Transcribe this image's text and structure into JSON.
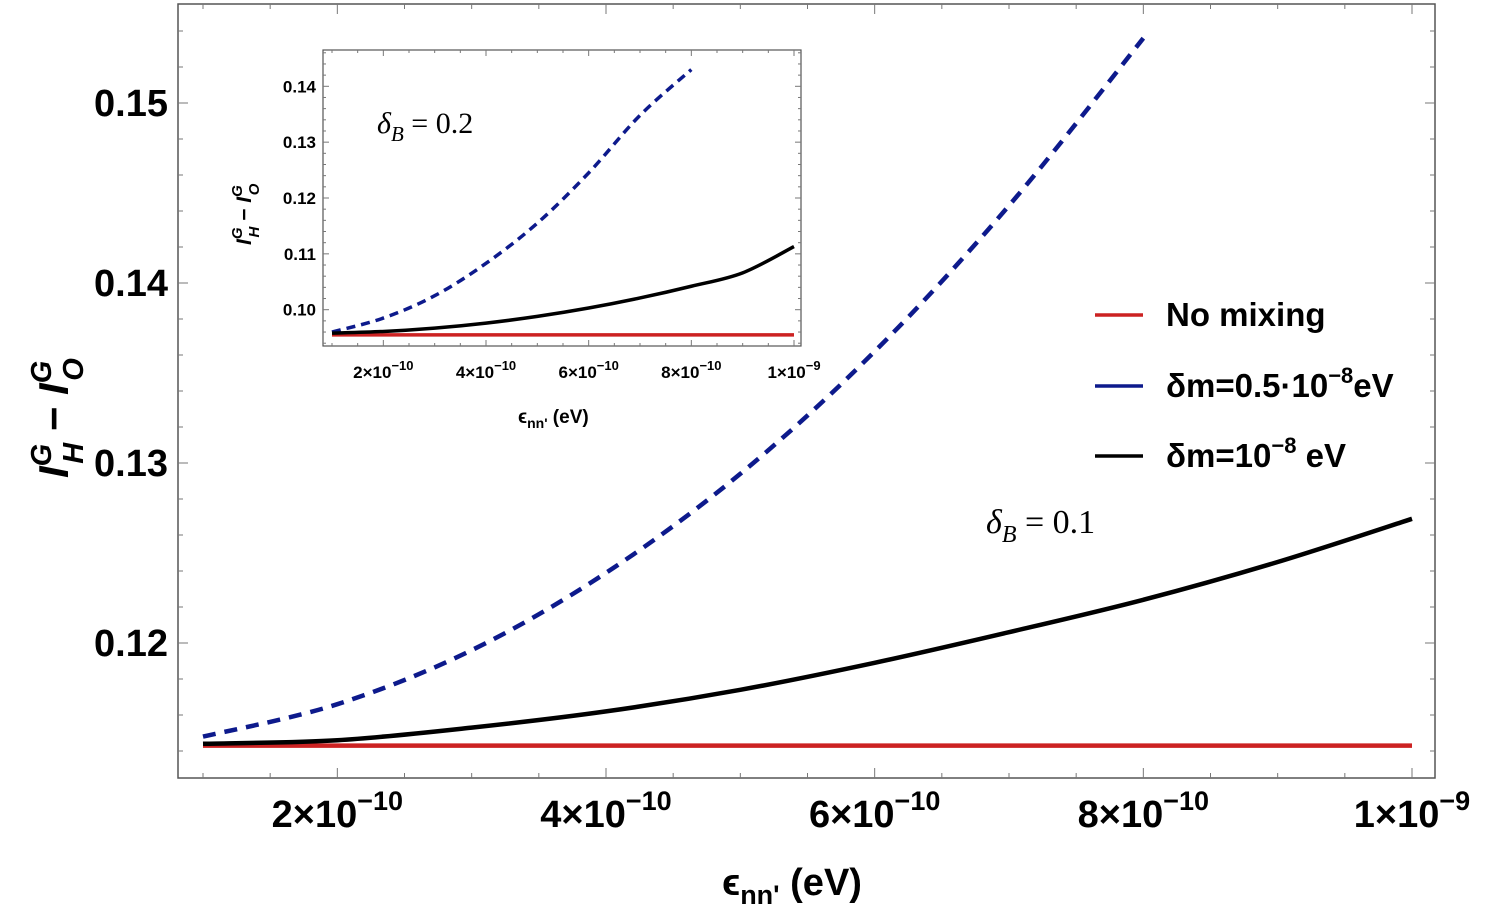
{
  "chart_data": [
    {
      "id": "main",
      "type": "line",
      "xlabel": "ε_nn' (eV)",
      "ylabel": "I_H^G − I_O^G",
      "xlim": [
        1e-10,
        1.05e-09
      ],
      "ylim": [
        0.1125,
        0.1555
      ],
      "x_ticks": [
        {
          "value": 2e-10,
          "mantissa": "2",
          "exp": "−10"
        },
        {
          "value": 4e-10,
          "mantissa": "4",
          "exp": "−10"
        },
        {
          "value": 6e-10,
          "mantissa": "6",
          "exp": "−10"
        },
        {
          "value": 8e-10,
          "mantissa": "8",
          "exp": "−10"
        },
        {
          "value": 1e-09,
          "mantissa": "1",
          "exp": "−9"
        }
      ],
      "y_ticks": [
        {
          "value": 0.12,
          "label": "0.12"
        },
        {
          "value": 0.13,
          "label": "0.13"
        },
        {
          "value": 0.14,
          "label": "0.14"
        },
        {
          "value": 0.15,
          "label": "0.15"
        }
      ],
      "annotation": {
        "text": "δ_B = 0.1",
        "symbol": "δ",
        "sub": "B",
        "rest": " = 0.1"
      },
      "series": [
        {
          "name": "No mixing",
          "color": "#cc2222",
          "style": "solid",
          "x": [
            1e-10,
            2e-10,
            4e-10,
            6e-10,
            8e-10,
            1e-09
          ],
          "y": [
            0.1143,
            0.1143,
            0.1143,
            0.1143,
            0.1143,
            0.1143
          ]
        },
        {
          "name": "δm=0.5·10^-8 eV",
          "color": "#0d1a8c",
          "style": "dashed",
          "x": [
            1e-10,
            2e-10,
            3e-10,
            4e-10,
            5e-10,
            6e-10,
            7e-10,
            8e-10
          ],
          "y": [
            0.1148,
            0.1166,
            0.1196,
            0.1239,
            0.1294,
            0.1362,
            0.1443,
            0.1536
          ]
        },
        {
          "name": "δm=10^-8 eV",
          "color": "#000000",
          "style": "solid",
          "x": [
            1e-10,
            2e-10,
            3e-10,
            4e-10,
            5e-10,
            6e-10,
            7e-10,
            8e-10,
            9e-10,
            1e-09
          ],
          "y": [
            0.1144,
            0.1146,
            0.1153,
            0.1162,
            0.1174,
            0.1189,
            0.1206,
            0.1224,
            0.1245,
            0.1269
          ]
        }
      ]
    },
    {
      "id": "inset",
      "type": "line",
      "xlabel": "ε_nn' (eV)",
      "ylabel": "I_H^G − I_O^G",
      "xlim": [
        1e-10,
        1.02e-09
      ],
      "ylim": [
        0.0935,
        0.1465
      ],
      "x_ticks": [
        {
          "value": 2e-10,
          "mantissa": "2",
          "exp": "−10"
        },
        {
          "value": 4e-10,
          "mantissa": "4",
          "exp": "−10"
        },
        {
          "value": 6e-10,
          "mantissa": "6",
          "exp": "−10"
        },
        {
          "value": 8e-10,
          "mantissa": "8",
          "exp": "−10"
        },
        {
          "value": 1e-09,
          "mantissa": "1",
          "exp": "−9"
        }
      ],
      "y_ticks": [
        {
          "value": 0.1,
          "label": "0.10"
        },
        {
          "value": 0.11,
          "label": "0.11"
        },
        {
          "value": 0.12,
          "label": "0.12"
        },
        {
          "value": 0.13,
          "label": "0.13"
        },
        {
          "value": 0.14,
          "label": "0.14"
        }
      ],
      "annotation": {
        "text": "δ_B = 0.2",
        "symbol": "δ",
        "sub": "B",
        "rest": " = 0.2"
      },
      "series": [
        {
          "name": "No mixing",
          "color": "#cc2222",
          "style": "solid",
          "x": [
            1e-10,
            1e-09
          ],
          "y": [
            0.0955,
            0.0955
          ]
        },
        {
          "name": "δm=0.5·10^-8 eV",
          "color": "#0d1a8c",
          "style": "dashed",
          "x": [
            1e-10,
            2e-10,
            3e-10,
            4e-10,
            5e-10,
            6e-10,
            7e-10,
            8e-10
          ],
          "y": [
            0.096,
            0.0985,
            0.1025,
            0.1083,
            0.1155,
            0.1245,
            0.1348,
            0.143
          ]
        },
        {
          "name": "δm=10^-8 eV",
          "color": "#000000",
          "style": "solid",
          "x": [
            1e-10,
            2e-10,
            3e-10,
            4e-10,
            5e-10,
            6e-10,
            7e-10,
            8e-10,
            9e-10,
            1e-09
          ],
          "y": [
            0.0958,
            0.0961,
            0.0967,
            0.0976,
            0.0988,
            0.1003,
            0.1021,
            0.1042,
            0.1066,
            0.1113
          ]
        }
      ]
    }
  ],
  "legend": {
    "items": [
      {
        "label": "No mixing",
        "color": "#cc2222",
        "base": "No mixing",
        "sup": "",
        "tail": ""
      },
      {
        "label": "δm=0.5·10^-8 eV",
        "color": "#0d1a8c",
        "base": "δm=0.5·10",
        "sup": "−8",
        "tail": "eV"
      },
      {
        "label": "δm=10^-8 eV",
        "color": "#000000",
        "base": "δm=10",
        "sup": "−8",
        "tail": " eV"
      }
    ]
  },
  "labels": {
    "x_main": "ϵ",
    "x_sub": "nn'",
    "x_unit": " (eV)",
    "y_I": "I",
    "y_sub_H": "H",
    "y_sup": "G",
    "y_minus": " − ",
    "y_sub_O": "O",
    "times": "×",
    "ten": "10"
  }
}
